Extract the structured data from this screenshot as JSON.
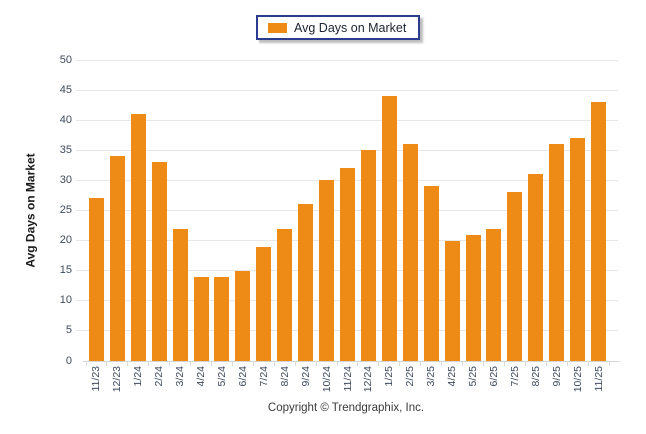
{
  "legend": {
    "label": "Avg Days on Market",
    "swatch_color": "#EE8B17"
  },
  "y_axis": {
    "title": "Avg Days on Market",
    "ticks": [
      0,
      5,
      10,
      15,
      20,
      25,
      30,
      35,
      40,
      45,
      50
    ]
  },
  "footer": {
    "copyright": "Copyright © Trendgraphix, Inc."
  },
  "colors": {
    "bar": "#EE8B17",
    "legend_border": "#2B3C8F",
    "gridline": "#E7E7E7",
    "axis_line": "#D4D4D4",
    "tick_label": "#3E4A5C"
  },
  "chart_data": {
    "type": "bar",
    "title": "",
    "xlabel": "",
    "ylabel": "Avg Days on Market",
    "categories": [
      "11/23",
      "12/23",
      "1/24",
      "2/24",
      "3/24",
      "4/24",
      "5/24",
      "6/24",
      "7/24",
      "8/24",
      "9/24",
      "10/24",
      "11/24",
      "12/24",
      "1/25",
      "2/25",
      "3/25",
      "4/25",
      "5/25",
      "6/25",
      "7/25",
      "8/25",
      "9/25",
      "10/25",
      "11/25"
    ],
    "values": [
      27,
      34,
      41,
      33,
      22,
      14,
      14,
      15,
      19,
      22,
      26,
      30,
      32,
      35,
      44,
      36,
      29,
      20,
      21,
      22,
      28,
      31,
      36,
      37,
      43
    ],
    "series_name": "Avg Days on Market",
    "ylim": [
      0,
      50
    ],
    "ytick_step": 5,
    "bar_color": "#EE8B17",
    "grid": "horizontal",
    "legend_position": "top-center"
  }
}
